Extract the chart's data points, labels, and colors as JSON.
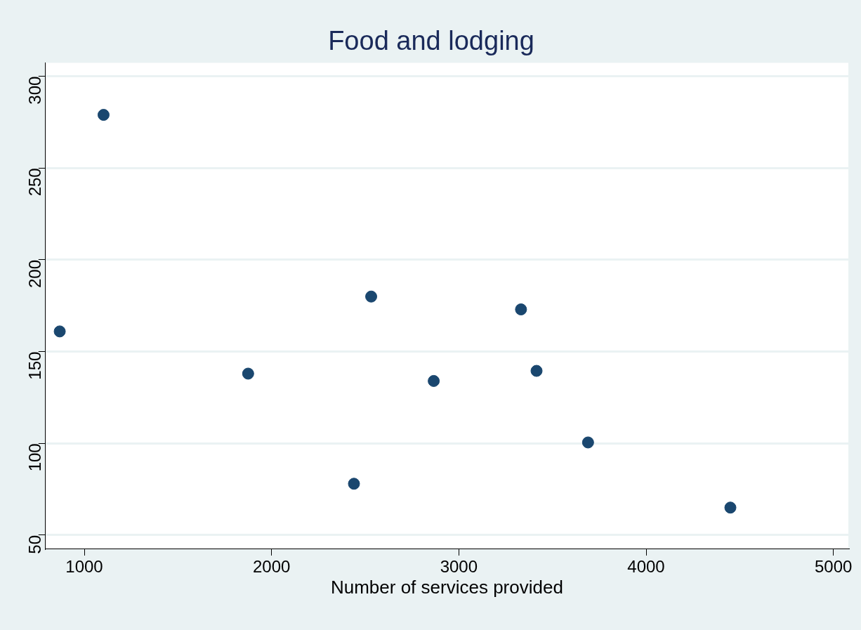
{
  "chart_data": {
    "type": "scatter",
    "title": "Food and lodging",
    "xlabel": "Number of services provided",
    "x": [
      869,
      1103,
      1875,
      2440,
      2532,
      2866,
      3332,
      3415,
      3690,
      4450
    ],
    "values": [
      161,
      279,
      138,
      78,
      180,
      134,
      173,
      139.5,
      100.5,
      65
    ],
    "color": "#1a476f",
    "marker": "circle",
    "xlim": [
      793,
      5080
    ],
    "xticks": [
      1000,
      2000,
      3000,
      4000,
      5000
    ],
    "ylim": [
      42.7,
      307.3
    ],
    "yticks": [
      50,
      100,
      150,
      200,
      250,
      300
    ],
    "grid": "y",
    "legend": false
  }
}
